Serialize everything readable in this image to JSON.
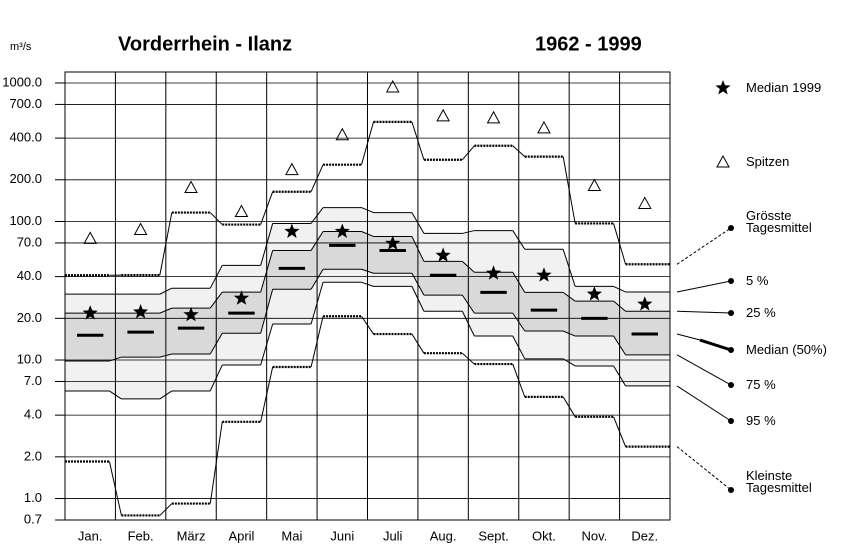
{
  "chart_data": {
    "type": "line",
    "unit": "m³/s",
    "title": "Vorderrhein - Ilanz",
    "subtitle": "1962 - 1999",
    "categories": [
      "Jan.",
      "Feb.",
      "März",
      "April",
      "Mai",
      "Juni",
      "Juli",
      "Aug.",
      "Sept.",
      "Okt.",
      "Nov.",
      "Dez."
    ],
    "log_y": true,
    "grid": true,
    "ylim": [
      0.7,
      1200
    ],
    "yticks": [
      {
        "value": 1000,
        "label": "1000.0"
      },
      {
        "value": 700,
        "label": "700.0"
      },
      {
        "value": 400,
        "label": "400.0"
      },
      {
        "value": 200,
        "label": "200.0"
      },
      {
        "value": 100,
        "label": "100.0"
      },
      {
        "value": 70,
        "label": "70.0"
      },
      {
        "value": 40,
        "label": "40.0"
      },
      {
        "value": 20,
        "label": "20.0"
      },
      {
        "value": 10,
        "label": "10.0"
      },
      {
        "value": 7,
        "label": "7.0"
      },
      {
        "value": 4,
        "label": "4.0"
      },
      {
        "value": 2,
        "label": "2.0"
      },
      {
        "value": 1,
        "label": "1.0"
      },
      {
        "value": 0.7,
        "label": "0.7"
      }
    ],
    "series": [
      {
        "name": "Median  1999",
        "color": "#000000",
        "style": "star",
        "values": [
          21.8,
          22.2,
          21.2,
          27.9,
          84.7,
          84.7,
          69.5,
          56.9,
          42.3,
          40.9,
          29.9,
          25.3
        ]
      },
      {
        "name": "Spitzen",
        "color": "#000000",
        "style": "triangle",
        "values": [
          75.5,
          87.5,
          176,
          118,
          237,
          423,
          936,
          579,
          560,
          474,
          182,
          135
        ]
      },
      {
        "name": "Grösste Tagesmittel",
        "color": "#000000",
        "style": "dashed",
        "values": [
          40.9,
          41,
          116,
          95,
          164,
          257,
          524,
          279,
          352,
          294,
          96.8,
          49.1
        ]
      },
      {
        "name": "5 %",
        "color": "#000000",
        "style": "solid",
        "values": [
          29.9,
          29.9,
          33,
          48.2,
          96.8,
          126,
          116,
          82,
          86,
          63,
          34,
          31
        ]
      },
      {
        "name": "25 %",
        "color": "#000000",
        "style": "solid",
        "values": [
          21.8,
          21.8,
          23.7,
          30.9,
          61.8,
          84.7,
          78,
          51.5,
          43,
          30.8,
          26.6,
          22.5
        ]
      },
      {
        "name": "Median (50%)",
        "color": "#000000",
        "style": "bold",
        "values": [
          15.1,
          15.9,
          17,
          21.8,
          45.9,
          67.2,
          61.8,
          40.9,
          30.8,
          22.9,
          20,
          15.4
        ]
      },
      {
        "name": "75 %",
        "color": "#000000",
        "style": "solid",
        "values": [
          9.84,
          10.5,
          11.05,
          15.6,
          32.4,
          45.2,
          42.3,
          29.4,
          21.8,
          16.2,
          14.9,
          10.9
        ]
      },
      {
        "name": "95 %",
        "color": "#000000",
        "style": "solid",
        "values": [
          5.98,
          5.24,
          5.98,
          9.2,
          18.2,
          36.4,
          34,
          22.5,
          14.9,
          10.2,
          9.06,
          6.5
        ]
      },
      {
        "name": "Kleinste Tagesmittel",
        "color": "#000000",
        "style": "dashed",
        "values": [
          1.85,
          0.755,
          0.92,
          3.58,
          8.9,
          20.7,
          15.4,
          11.2,
          9.35,
          5.42,
          3.89,
          2.37
        ]
      }
    ]
  }
}
